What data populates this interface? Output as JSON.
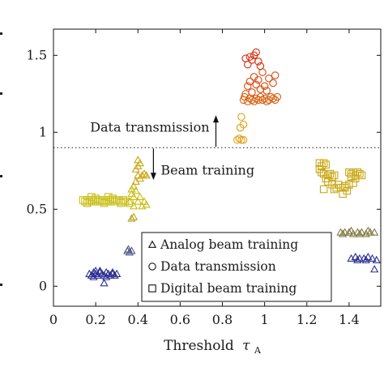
{
  "chart_data": {
    "type": "scatter",
    "xlabel": "Threshold",
    "xlabel_symbol": "τ",
    "xlabel_subscript": "A",
    "xlim": [
      0,
      1.55
    ],
    "ylim": [
      -0.13,
      1.67
    ],
    "xticks": [
      "0",
      "0.2",
      "0.4",
      "0.6",
      "0.8",
      "1",
      "1.2",
      "1.4"
    ],
    "xtick_values": [
      0,
      0.2,
      0.4,
      0.6,
      0.8,
      1.0,
      1.2,
      1.4
    ],
    "yticks": [
      "0",
      "0.5",
      "1",
      "1.5"
    ],
    "ytick_values": [
      0,
      0.5,
      1.0,
      1.5
    ],
    "grid": false,
    "legend_position": "lower-center",
    "threshold_line": {
      "y": 0.9,
      "style": "dotted"
    },
    "annotations": {
      "up_text": "Data transmission",
      "down_text": "Beam training",
      "arrow_x": 0.8
    },
    "series": [
      {
        "name": "Analog beam training",
        "marker": "triangle",
        "points": [
          [
            0.17,
            0.08,
            "#2e2f94"
          ],
          [
            0.18,
            0.07,
            "#2e2f94"
          ],
          [
            0.19,
            0.09,
            "#2e2f94"
          ],
          [
            0.2,
            0.08,
            "#2e2f94"
          ],
          [
            0.21,
            0.07,
            "#2e2f94"
          ],
          [
            0.22,
            0.09,
            "#2e2f94"
          ],
          [
            0.23,
            0.08,
            "#2e2f94"
          ],
          [
            0.24,
            0.07,
            "#2e2f94"
          ],
          [
            0.25,
            0.09,
            "#2e2f94"
          ],
          [
            0.26,
            0.08,
            "#2e2f94"
          ],
          [
            0.27,
            0.07,
            "#2e2f94"
          ],
          [
            0.28,
            0.08,
            "#2e2f94"
          ],
          [
            0.29,
            0.07,
            "#2e2f94"
          ],
          [
            0.3,
            0.08,
            "#2e2f94"
          ],
          [
            0.19,
            0.06,
            "#2e2f94"
          ],
          [
            0.22,
            0.1,
            "#2e2f94"
          ],
          [
            0.25,
            0.06,
            "#2e2f94"
          ],
          [
            0.28,
            0.09,
            "#2e2f94"
          ],
          [
            0.24,
            0.02,
            "#2e2f94"
          ],
          [
            0.2,
            0.1,
            "#2e2f94"
          ],
          [
            0.35,
            0.23,
            "#555a8a"
          ],
          [
            0.36,
            0.22,
            "#555a8a"
          ],
          [
            0.37,
            0.23,
            "#555a8a"
          ],
          [
            0.355,
            0.24,
            "#555a8a"
          ],
          [
            0.37,
            0.44,
            "#b5a420"
          ],
          [
            0.38,
            0.45,
            "#b5a420"
          ],
          [
            0.36,
            0.55,
            "#c9bd16"
          ],
          [
            0.37,
            0.6,
            "#c9bd16"
          ],
          [
            0.38,
            0.58,
            "#c9bd16"
          ],
          [
            0.39,
            0.62,
            "#c9bd16"
          ],
          [
            0.37,
            0.63,
            "#c9bd16"
          ],
          [
            0.38,
            0.65,
            "#c9bd16"
          ],
          [
            0.4,
            0.55,
            "#c9bd16"
          ],
          [
            0.41,
            0.58,
            "#c9bd16"
          ],
          [
            0.39,
            0.68,
            "#c9a816"
          ],
          [
            0.4,
            0.72,
            "#c9a816"
          ],
          [
            0.41,
            0.7,
            "#c9a816"
          ],
          [
            0.42,
            0.72,
            "#c9a816"
          ],
          [
            0.43,
            0.73,
            "#c9a816"
          ],
          [
            0.44,
            0.72,
            "#c9a816"
          ],
          [
            0.4,
            0.78,
            "#c9a816"
          ],
          [
            0.41,
            0.8,
            "#c9a816"
          ],
          [
            0.4,
            0.82,
            "#c9a816"
          ],
          [
            0.39,
            0.76,
            "#c9a816"
          ],
          [
            0.42,
            0.52,
            "#c9bd16"
          ],
          [
            0.44,
            0.53,
            "#c9bd16"
          ],
          [
            0.43,
            0.55,
            "#c9bd16"
          ],
          [
            0.38,
            0.52,
            "#c9bd16"
          ],
          [
            1.36,
            0.35,
            "#807a44"
          ],
          [
            1.38,
            0.35,
            "#807a44"
          ],
          [
            1.4,
            0.35,
            "#807a44"
          ],
          [
            1.42,
            0.34,
            "#807a44"
          ],
          [
            1.44,
            0.35,
            "#807a44"
          ],
          [
            1.46,
            0.35,
            "#807a44"
          ],
          [
            1.48,
            0.34,
            "#807a44"
          ],
          [
            1.5,
            0.35,
            "#807a44"
          ],
          [
            1.52,
            0.35,
            "#807a44"
          ],
          [
            1.37,
            0.34,
            "#807a44"
          ],
          [
            1.41,
            0.36,
            "#807a44"
          ],
          [
            1.45,
            0.34,
            "#807a44"
          ],
          [
            1.49,
            0.36,
            "#807a44"
          ],
          [
            1.41,
            0.18,
            "#2e2f94"
          ],
          [
            1.43,
            0.19,
            "#2e2f94"
          ],
          [
            1.45,
            0.18,
            "#2e2f94"
          ],
          [
            1.47,
            0.18,
            "#2e2f94"
          ],
          [
            1.49,
            0.19,
            "#2e2f94"
          ],
          [
            1.51,
            0.18,
            "#2e2f94"
          ],
          [
            1.53,
            0.17,
            "#2e2f94"
          ],
          [
            1.44,
            0.17,
            "#2e2f94"
          ],
          [
            1.48,
            0.17,
            "#2e2f94"
          ],
          [
            1.52,
            0.11,
            "#2e2f94"
          ]
        ]
      },
      {
        "name": "Data transmission",
        "marker": "circle",
        "points": [
          [
            0.87,
            0.95,
            "#e0a015"
          ],
          [
            0.88,
            0.96,
            "#e0a015"
          ],
          [
            0.89,
            0.95,
            "#e0a015"
          ],
          [
            0.9,
            0.95,
            "#e0a015"
          ],
          [
            0.885,
            1.03,
            "#e0a015"
          ],
          [
            0.89,
            1.1,
            "#e0a015"
          ],
          [
            0.9,
            1.05,
            "#e0a015"
          ],
          [
            0.9,
            1.21,
            "#d86010"
          ],
          [
            0.905,
            1.23,
            "#d86010"
          ],
          [
            0.91,
            1.25,
            "#d86010"
          ],
          [
            0.92,
            1.2,
            "#d86010"
          ],
          [
            0.93,
            1.22,
            "#d86010"
          ],
          [
            0.94,
            1.21,
            "#d86010"
          ],
          [
            0.95,
            1.2,
            "#d86010"
          ],
          [
            0.96,
            1.22,
            "#d86010"
          ],
          [
            0.97,
            1.21,
            "#d86010"
          ],
          [
            0.98,
            1.23,
            "#d86010"
          ],
          [
            0.99,
            1.21,
            "#d86010"
          ],
          [
            1.0,
            1.22,
            "#d86010"
          ],
          [
            1.01,
            1.2,
            "#d86010"
          ],
          [
            1.02,
            1.21,
            "#d86010"
          ],
          [
            1.03,
            1.23,
            "#d86010"
          ],
          [
            1.04,
            1.22,
            "#d86010"
          ],
          [
            1.05,
            1.21,
            "#d86010"
          ],
          [
            1.06,
            1.23,
            "#d86010"
          ],
          [
            0.92,
            1.3,
            "#d84a10"
          ],
          [
            0.93,
            1.33,
            "#d84a10"
          ],
          [
            0.95,
            1.36,
            "#d84a10"
          ],
          [
            0.96,
            1.31,
            "#d84a10"
          ],
          [
            0.97,
            1.34,
            "#d84a10"
          ],
          [
            0.98,
            1.28,
            "#d84a10"
          ],
          [
            1.0,
            1.3,
            "#d84a10"
          ],
          [
            1.02,
            1.35,
            "#d84a10"
          ],
          [
            1.04,
            1.32,
            "#d84a10"
          ],
          [
            1.05,
            1.37,
            "#d84a10"
          ],
          [
            0.99,
            1.39,
            "#d84a10"
          ],
          [
            1.01,
            1.27,
            "#d84a10"
          ],
          [
            0.94,
            1.26,
            "#d84a10"
          ],
          [
            0.92,
            1.44,
            "#d82c10"
          ],
          [
            0.93,
            1.49,
            "#d82c10"
          ],
          [
            0.95,
            1.5,
            "#d82c10"
          ],
          [
            0.96,
            1.52,
            "#d82c10"
          ],
          [
            0.97,
            1.46,
            "#d82c10"
          ],
          [
            0.94,
            1.47,
            "#d82c10"
          ],
          [
            0.98,
            1.43,
            "#d82c10"
          ],
          [
            0.91,
            1.48,
            "#d82c10"
          ]
        ]
      },
      {
        "name": "Digital beam training",
        "marker": "square",
        "points": [
          [
            0.14,
            0.56,
            "#c9bd16"
          ],
          [
            0.15,
            0.55,
            "#c9bd16"
          ],
          [
            0.16,
            0.56,
            "#c9bd16"
          ],
          [
            0.17,
            0.55,
            "#c9bd16"
          ],
          [
            0.18,
            0.56,
            "#c9bd16"
          ],
          [
            0.19,
            0.55,
            "#c9bd16"
          ],
          [
            0.2,
            0.56,
            "#c9bd16"
          ],
          [
            0.21,
            0.55,
            "#c9bd16"
          ],
          [
            0.22,
            0.56,
            "#c9bd16"
          ],
          [
            0.23,
            0.55,
            "#c9bd16"
          ],
          [
            0.24,
            0.56,
            "#c9bd16"
          ],
          [
            0.25,
            0.55,
            "#c9bd16"
          ],
          [
            0.26,
            0.56,
            "#c9bd16"
          ],
          [
            0.27,
            0.55,
            "#c9bd16"
          ],
          [
            0.28,
            0.56,
            "#c9bd16"
          ],
          [
            0.29,
            0.55,
            "#c9bd16"
          ],
          [
            0.3,
            0.56,
            "#c9bd16"
          ],
          [
            0.31,
            0.56,
            "#c9bd16"
          ],
          [
            0.32,
            0.55,
            "#c9bd16"
          ],
          [
            0.33,
            0.56,
            "#c9bd16"
          ],
          [
            0.34,
            0.55,
            "#c9bd16"
          ],
          [
            0.16,
            0.54,
            "#c9bd16"
          ],
          [
            0.2,
            0.57,
            "#c9bd16"
          ],
          [
            0.24,
            0.54,
            "#c9bd16"
          ],
          [
            0.28,
            0.57,
            "#c9bd16"
          ],
          [
            0.32,
            0.54,
            "#c9bd16"
          ],
          [
            0.36,
            0.54,
            "#c9bd16"
          ],
          [
            0.18,
            0.58,
            "#c9bd16"
          ],
          [
            0.26,
            0.58,
            "#c9bd16"
          ],
          [
            1.26,
            0.8,
            "#c9a816"
          ],
          [
            1.27,
            0.78,
            "#c9a816"
          ],
          [
            1.28,
            0.8,
            "#c9a816"
          ],
          [
            1.29,
            0.79,
            "#c9a816"
          ],
          [
            1.26,
            0.76,
            "#c9a816"
          ],
          [
            1.27,
            0.74,
            "#c9a816"
          ],
          [
            1.28,
            0.73,
            "#c9a816"
          ],
          [
            1.3,
            0.72,
            "#c9a816"
          ],
          [
            1.31,
            0.73,
            "#c9a816"
          ],
          [
            1.32,
            0.71,
            "#c9a816"
          ],
          [
            1.33,
            0.72,
            "#c9a816"
          ],
          [
            1.29,
            0.7,
            "#c9a816"
          ],
          [
            1.3,
            0.68,
            "#c9a816"
          ],
          [
            1.32,
            0.66,
            "#c9a816"
          ],
          [
            1.34,
            0.64,
            "#c9a816"
          ],
          [
            1.35,
            0.66,
            "#c9a816"
          ],
          [
            1.28,
            0.63,
            "#c9a816"
          ],
          [
            1.33,
            0.63,
            "#c9a816"
          ],
          [
            1.36,
            0.64,
            "#c9a816"
          ],
          [
            1.4,
            0.74,
            "#c9a816"
          ],
          [
            1.41,
            0.73,
            "#c9a816"
          ],
          [
            1.42,
            0.74,
            "#c9a816"
          ],
          [
            1.43,
            0.72,
            "#c9a816"
          ],
          [
            1.44,
            0.74,
            "#c9a816"
          ],
          [
            1.45,
            0.73,
            "#c9a816"
          ],
          [
            1.46,
            0.72,
            "#c9a816"
          ],
          [
            1.41,
            0.71,
            "#c9a816"
          ],
          [
            1.43,
            0.7,
            "#c9a816"
          ],
          [
            1.42,
            0.67,
            "#c9a816"
          ],
          [
            1.4,
            0.66,
            "#c9a816"
          ],
          [
            1.38,
            0.65,
            "#c9a816"
          ],
          [
            1.39,
            0.62,
            "#c9a816"
          ],
          [
            1.37,
            0.6,
            "#c9a816"
          ],
          [
            1.38,
            0.64,
            "#c9a816"
          ]
        ]
      }
    ]
  }
}
